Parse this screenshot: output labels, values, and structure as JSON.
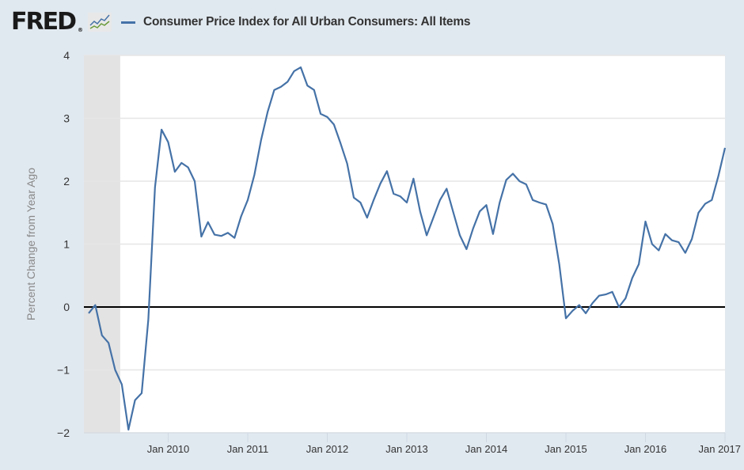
{
  "header": {
    "logo_text": "FRED",
    "logo_reg": "®",
    "legend_label": "Consumer Price Index for All Urban Consumers: All Items"
  },
  "colors": {
    "background": "#e1e9f0",
    "plot_background": "#ffffff",
    "series": "#4572a7",
    "recession": "#e3e3e3",
    "grid": "#e6e6e6",
    "zero_line": "#000000"
  },
  "chart_data": {
    "type": "line",
    "title": "Consumer Price Index for All Urban Consumers: All Items",
    "xlabel": "",
    "ylabel": "Percent Change from Year Ago",
    "ylim": [
      -2,
      4
    ],
    "yticks": [
      4,
      3,
      2,
      1,
      0,
      -1,
      -2
    ],
    "ytick_labels": [
      "4",
      "3",
      "2",
      "1",
      "0",
      "−1",
      "−2"
    ],
    "xlim": [
      "2009-01",
      "2017-01"
    ],
    "xticks": [
      "2010-01",
      "2011-01",
      "2012-01",
      "2013-01",
      "2014-01",
      "2015-01",
      "2016-01",
      "2017-01"
    ],
    "xtick_labels": [
      "Jan 2010",
      "Jan 2011",
      "Jan 2012",
      "Jan 2013",
      "Jan 2014",
      "Jan 2015",
      "Jan 2016",
      "Jan 2017"
    ],
    "grid": true,
    "legend_placement": "top",
    "recession_shading": {
      "start": "2009-01",
      "end": "2009-06"
    },
    "reference_line": 0,
    "series": [
      {
        "name": "Consumer Price Index for All Urban Consumers: All Items",
        "start": "2009-01",
        "frequency": "monthly",
        "values": [
          -0.1,
          0.03,
          -0.45,
          -0.57,
          -1.0,
          -1.23,
          -1.95,
          -1.48,
          -1.37,
          -0.2,
          1.9,
          2.82,
          2.62,
          2.15,
          2.29,
          2.22,
          2.0,
          1.12,
          1.35,
          1.15,
          1.13,
          1.18,
          1.1,
          1.44,
          1.7,
          2.1,
          2.65,
          3.1,
          3.45,
          3.5,
          3.58,
          3.75,
          3.81,
          3.52,
          3.45,
          3.07,
          3.02,
          2.9,
          2.6,
          2.28,
          1.74,
          1.66,
          1.42,
          1.7,
          1.96,
          2.16,
          1.8,
          1.76,
          1.66,
          2.04,
          1.52,
          1.14,
          1.42,
          1.7,
          1.88,
          1.51,
          1.14,
          0.92,
          1.25,
          1.52,
          1.62,
          1.16,
          1.66,
          2.02,
          2.12,
          2.0,
          1.95,
          1.7,
          1.66,
          1.63,
          1.32,
          0.68,
          -0.18,
          -0.06,
          0.03,
          -0.1,
          0.06,
          0.18,
          0.2,
          0.24,
          0.0,
          0.14,
          0.46,
          0.68,
          1.36,
          1.0,
          0.9,
          1.16,
          1.06,
          1.03,
          0.86,
          1.08,
          1.5,
          1.64,
          1.7,
          2.08,
          2.53
        ]
      }
    ]
  }
}
